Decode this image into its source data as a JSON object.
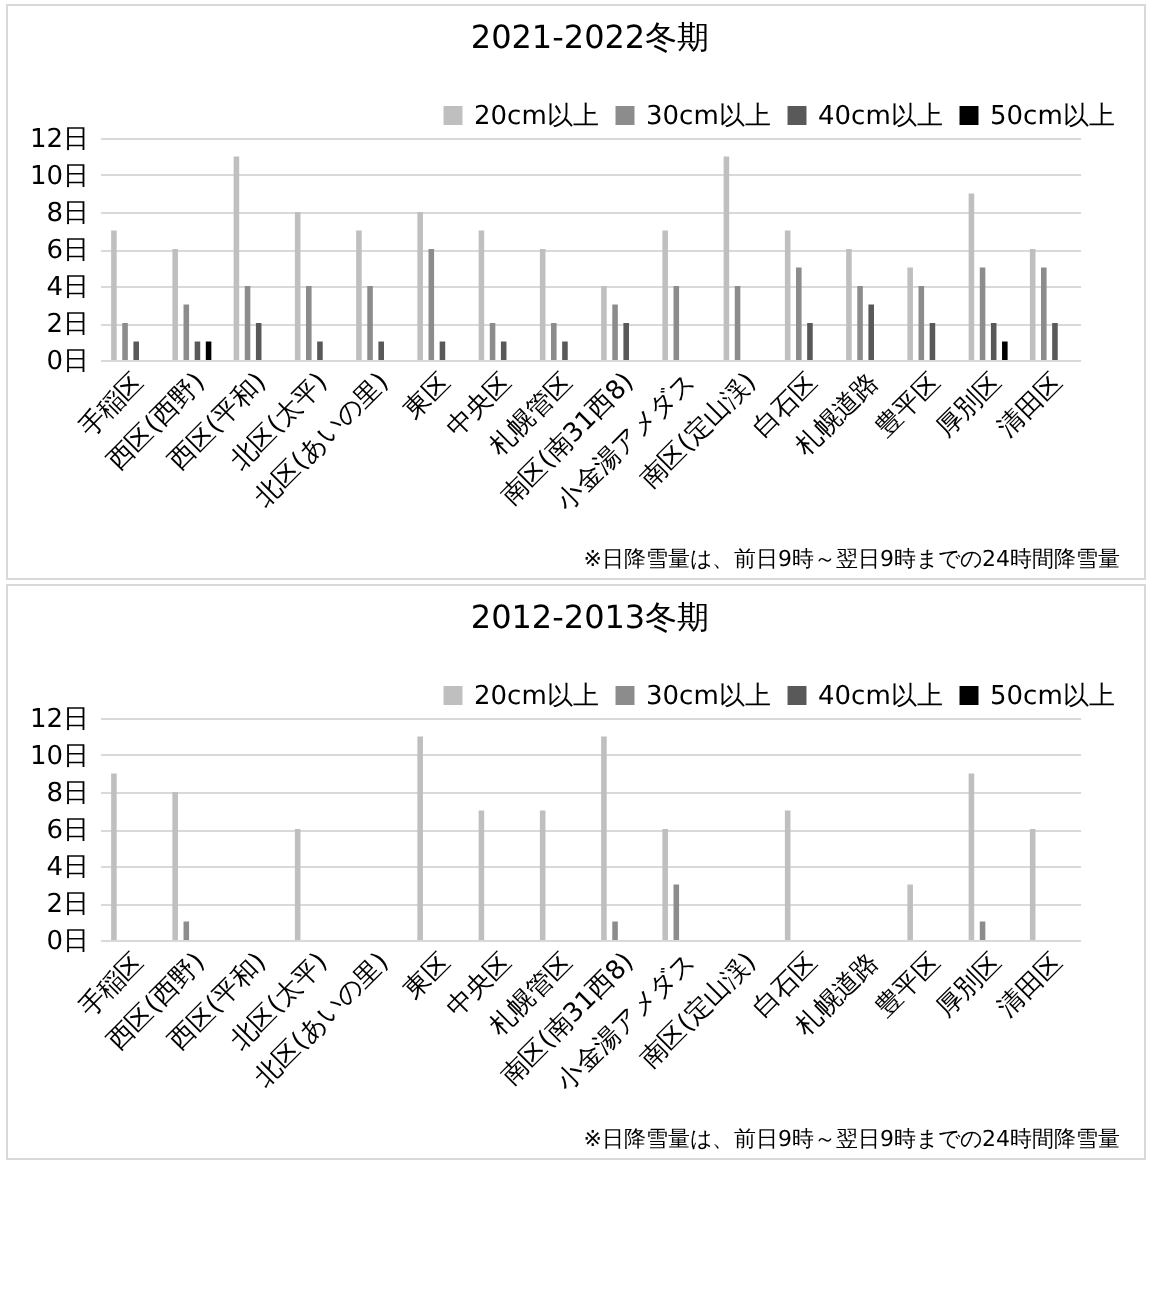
{
  "chart_data": [
    {
      "type": "bar",
      "title": "2021-2022冬期",
      "categories": [
        "手稲区",
        "西区(西野)",
        "西区(平和)",
        "北区(太平)",
        "北区(あいの里)",
        "東区",
        "中央区",
        "札幌管区",
        "南区(南31西8)",
        "小金湯アメダス",
        "南区(定山渓)",
        "白石区",
        "札幌道路",
        "豊平区",
        "厚別区",
        "清田区"
      ],
      "series": [
        {
          "name": "20cm以上",
          "color": "#bfbfbf",
          "values": [
            7,
            6,
            11,
            8,
            7,
            8,
            7,
            6,
            4,
            7,
            11,
            7,
            6,
            5,
            9,
            6
          ]
        },
        {
          "name": "30cm以上",
          "color": "#8c8c8c",
          "values": [
            2,
            3,
            4,
            4,
            4,
            6,
            2,
            2,
            3,
            4,
            4,
            5,
            4,
            4,
            5,
            5
          ]
        },
        {
          "name": "40cm以上",
          "color": "#595959",
          "values": [
            1,
            1,
            2,
            1,
            1,
            1,
            1,
            1,
            2,
            0,
            0,
            2,
            3,
            2,
            2,
            2
          ]
        },
        {
          "name": "50cm以上",
          "color": "#000000",
          "values": [
            0,
            1,
            0,
            0,
            0,
            0,
            0,
            0,
            0,
            0,
            0,
            0,
            0,
            0,
            1,
            0
          ]
        }
      ],
      "ylim": [
        0,
        12
      ],
      "yticks": [
        {
          "value": 0,
          "label": "0日"
        },
        {
          "value": 2,
          "label": "2日"
        },
        {
          "value": 4,
          "label": "4日"
        },
        {
          "value": 6,
          "label": "6日"
        },
        {
          "value": 8,
          "label": "8日"
        },
        {
          "value": 10,
          "label": "10日"
        },
        {
          "value": 12,
          "label": "12日"
        }
      ],
      "grid": "y",
      "legend": "top right",
      "annotations": [
        "※日降雪量は、前日9時～翌日9時までの24時間降雪量"
      ]
    },
    {
      "type": "bar",
      "title": "2012-2013冬期",
      "categories": [
        "手稲区",
        "西区(西野)",
        "西区(平和)",
        "北区(太平)",
        "北区(あいの里)",
        "東区",
        "中央区",
        "札幌管区",
        "南区(南31西8)",
        "小金湯アメダス",
        "南区(定山渓)",
        "白石区",
        "札幌道路",
        "豊平区",
        "厚別区",
        "清田区"
      ],
      "series": [
        {
          "name": "20cm以上",
          "color": "#bfbfbf",
          "values": [
            9,
            8,
            0,
            6,
            0,
            11,
            7,
            7,
            11,
            6,
            0,
            7,
            0,
            3,
            9,
            6
          ]
        },
        {
          "name": "30cm以上",
          "color": "#8c8c8c",
          "values": [
            0,
            1,
            0,
            0,
            0,
            0,
            0,
            0,
            1,
            3,
            0,
            0,
            0,
            0,
            1,
            0
          ]
        },
        {
          "name": "40cm以上",
          "color": "#595959",
          "values": [
            0,
            0,
            0,
            0,
            0,
            0,
            0,
            0,
            0,
            0,
            0,
            0,
            0,
            0,
            0,
            0
          ]
        },
        {
          "name": "50cm以上",
          "color": "#000000",
          "values": [
            0,
            0,
            0,
            0,
            0,
            0,
            0,
            0,
            0,
            0,
            0,
            0,
            0,
            0,
            0,
            0
          ]
        }
      ],
      "ylim": [
        0,
        12
      ],
      "yticks": [
        {
          "value": 0,
          "label": "0日"
        },
        {
          "value": 2,
          "label": "2日"
        },
        {
          "value": 4,
          "label": "4日"
        },
        {
          "value": 6,
          "label": "6日"
        },
        {
          "value": 8,
          "label": "8日"
        },
        {
          "value": 10,
          "label": "10日"
        },
        {
          "value": 12,
          "label": "12日"
        }
      ],
      "grid": "y",
      "legend": "top right",
      "annotations": [
        "※日降雪量は、前日9時～翌日9時までの24時間降雪量"
      ]
    }
  ]
}
